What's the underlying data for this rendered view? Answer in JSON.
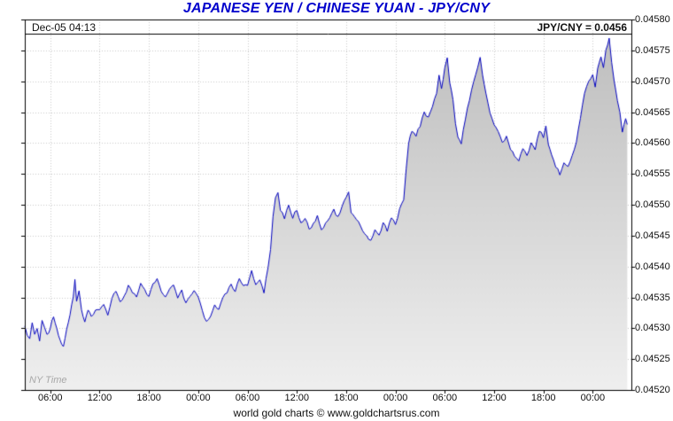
{
  "header": {
    "title": "JAPANESE YEN / CHINESE YUAN - JPY/CNY",
    "datetime": "Dec-05  04:13",
    "quote": "JPY/CNY = 0.0456"
  },
  "footer": {
    "credit": "world gold charts © www.goldchartsrus.com"
  },
  "chart_data": {
    "type": "line",
    "title": "JAPANESE YEN / CHINESE YUAN - JPY/CNY",
    "timezone_label": "NY Time",
    "xlabel": "",
    "ylabel": "",
    "ylim": [
      0.0452,
      0.0458
    ],
    "ytick_step": 5e-05,
    "ytick_labels": [
      "0.04520",
      "0.04525",
      "0.04530",
      "0.04535",
      "0.04540",
      "0.04545",
      "0.04550",
      "0.04555",
      "0.04560",
      "0.04565",
      "0.04570",
      "0.04575",
      "0.04580"
    ],
    "xtick_labels": [
      "06:00",
      "12:00",
      "18:00",
      "00:00",
      "06:00",
      "12:00",
      "18:00",
      "00:00",
      "06:00",
      "12:00",
      "18:00",
      "00:00"
    ],
    "xtick_hours": [
      6,
      12,
      18,
      24,
      30,
      36,
      42,
      48,
      54,
      60,
      66,
      72
    ],
    "x_range_hours": [
      2.9,
      76.7
    ],
    "grid": true,
    "legend": "none",
    "line_color": "#0000bd",
    "grid_color": "#c9c9c9",
    "border_color": "#000000",
    "fill_top_color": "#bcbcbc",
    "fill_bottom_color": "#efefef",
    "title_color": "#0000cc",
    "points": [
      [
        2.9,
        0.0453
      ],
      [
        3.2,
        0.04529
      ],
      [
        3.5,
        0.04528
      ],
      [
        3.8,
        0.04531
      ],
      [
        4.1,
        0.04529
      ],
      [
        4.4,
        0.0453
      ],
      [
        4.7,
        0.04528
      ],
      [
        5.0,
        0.04531
      ],
      [
        5.3,
        0.0453
      ],
      [
        5.6,
        0.04529
      ],
      [
        6.0,
        0.0453
      ],
      [
        6.4,
        0.04532
      ],
      [
        6.8,
        0.0453
      ],
      [
        7.2,
        0.04528
      ],
      [
        7.6,
        0.04527
      ],
      [
        8.0,
        0.0453
      ],
      [
        8.4,
        0.04532
      ],
      [
        8.8,
        0.04535
      ],
      [
        9.0,
        0.04538
      ],
      [
        9.2,
        0.04534
      ],
      [
        9.5,
        0.04536
      ],
      [
        9.8,
        0.04533
      ],
      [
        10.2,
        0.04531
      ],
      [
        10.6,
        0.04533
      ],
      [
        11.0,
        0.04532
      ],
      [
        11.5,
        0.04533
      ],
      [
        12.0,
        0.04533
      ],
      [
        12.5,
        0.04534
      ],
      [
        13.0,
        0.04532
      ],
      [
        13.5,
        0.04535
      ],
      [
        14.0,
        0.04536
      ],
      [
        14.5,
        0.04534
      ],
      [
        15.0,
        0.04535
      ],
      [
        15.5,
        0.04537
      ],
      [
        16.0,
        0.04536
      ],
      [
        16.5,
        0.04535
      ],
      [
        17.0,
        0.04537
      ],
      [
        17.5,
        0.04536
      ],
      [
        18.0,
        0.04535
      ],
      [
        18.5,
        0.04537
      ],
      [
        19.0,
        0.04538
      ],
      [
        19.5,
        0.04536
      ],
      [
        20.0,
        0.04535
      ],
      [
        20.5,
        0.04536
      ],
      [
        21.0,
        0.04537
      ],
      [
        21.5,
        0.04535
      ],
      [
        22.0,
        0.04536
      ],
      [
        22.5,
        0.04534
      ],
      [
        23.0,
        0.04535
      ],
      [
        23.5,
        0.04536
      ],
      [
        24.0,
        0.04535
      ],
      [
        24.5,
        0.04533
      ],
      [
        25.0,
        0.04531
      ],
      [
        25.5,
        0.04532
      ],
      [
        26.0,
        0.04534
      ],
      [
        26.5,
        0.04533
      ],
      [
        27.0,
        0.04535
      ],
      [
        27.5,
        0.04536
      ],
      [
        28.0,
        0.04537
      ],
      [
        28.5,
        0.04536
      ],
      [
        29.0,
        0.04538
      ],
      [
        29.5,
        0.04537
      ],
      [
        30.0,
        0.04537
      ],
      [
        30.5,
        0.04539
      ],
      [
        31.0,
        0.04537
      ],
      [
        31.5,
        0.04538
      ],
      [
        32.0,
        0.04536
      ],
      [
        32.5,
        0.0454
      ],
      [
        32.8,
        0.04543
      ],
      [
        33.1,
        0.04548
      ],
      [
        33.4,
        0.04551
      ],
      [
        33.7,
        0.04552
      ],
      [
        34.0,
        0.04549
      ],
      [
        34.5,
        0.04548
      ],
      [
        35.0,
        0.0455
      ],
      [
        35.5,
        0.04548
      ],
      [
        36.0,
        0.04549
      ],
      [
        36.5,
        0.04547
      ],
      [
        37.0,
        0.04548
      ],
      [
        37.5,
        0.04546
      ],
      [
        38.0,
        0.04547
      ],
      [
        38.5,
        0.04548
      ],
      [
        39.0,
        0.04546
      ],
      [
        39.5,
        0.04547
      ],
      [
        40.0,
        0.04548
      ],
      [
        40.5,
        0.04549
      ],
      [
        41.0,
        0.04548
      ],
      [
        41.5,
        0.0455
      ],
      [
        42.0,
        0.04551
      ],
      [
        42.3,
        0.04552
      ],
      [
        42.6,
        0.04549
      ],
      [
        43.0,
        0.04548
      ],
      [
        43.5,
        0.04547
      ],
      [
        44.0,
        0.04546
      ],
      [
        44.5,
        0.04545
      ],
      [
        45.0,
        0.04544
      ],
      [
        45.5,
        0.04546
      ],
      [
        46.0,
        0.04545
      ],
      [
        46.5,
        0.04547
      ],
      [
        47.0,
        0.04546
      ],
      [
        47.5,
        0.04548
      ],
      [
        48.0,
        0.04547
      ],
      [
        48.5,
        0.04549
      ],
      [
        49.0,
        0.04551
      ],
      [
        49.3,
        0.04556
      ],
      [
        49.6,
        0.0456
      ],
      [
        50.0,
        0.04562
      ],
      [
        50.5,
        0.04561
      ],
      [
        51.0,
        0.04563
      ],
      [
        51.5,
        0.04565
      ],
      [
        52.0,
        0.04564
      ],
      [
        52.5,
        0.04566
      ],
      [
        53.0,
        0.04568
      ],
      [
        53.3,
        0.04571
      ],
      [
        53.6,
        0.04569
      ],
      [
        54.0,
        0.04572
      ],
      [
        54.3,
        0.04574
      ],
      [
        54.6,
        0.0457
      ],
      [
        55.0,
        0.04567
      ],
      [
        55.3,
        0.04563
      ],
      [
        55.6,
        0.04561
      ],
      [
        56.0,
        0.0456
      ],
      [
        56.5,
        0.04564
      ],
      [
        57.0,
        0.04567
      ],
      [
        57.5,
        0.0457
      ],
      [
        58.0,
        0.04572
      ],
      [
        58.3,
        0.04574
      ],
      [
        58.6,
        0.04571
      ],
      [
        59.0,
        0.04568
      ],
      [
        59.5,
        0.04565
      ],
      [
        60.0,
        0.04563
      ],
      [
        60.5,
        0.04562
      ],
      [
        61.0,
        0.0456
      ],
      [
        61.5,
        0.04561
      ],
      [
        62.0,
        0.04559
      ],
      [
        62.5,
        0.04558
      ],
      [
        63.0,
        0.04557
      ],
      [
        63.5,
        0.04559
      ],
      [
        64.0,
        0.04558
      ],
      [
        64.5,
        0.0456
      ],
      [
        65.0,
        0.04559
      ],
      [
        65.5,
        0.04562
      ],
      [
        66.0,
        0.04561
      ],
      [
        66.3,
        0.04563
      ],
      [
        66.6,
        0.0456
      ],
      [
        67.0,
        0.04558
      ],
      [
        67.5,
        0.04556
      ],
      [
        68.0,
        0.04555
      ],
      [
        68.5,
        0.04557
      ],
      [
        69.0,
        0.04556
      ],
      [
        69.5,
        0.04558
      ],
      [
        70.0,
        0.0456
      ],
      [
        70.5,
        0.04564
      ],
      [
        71.0,
        0.04568
      ],
      [
        71.5,
        0.0457
      ],
      [
        72.0,
        0.04571
      ],
      [
        72.3,
        0.04569
      ],
      [
        72.6,
        0.04572
      ],
      [
        73.0,
        0.04574
      ],
      [
        73.3,
        0.04572
      ],
      [
        73.6,
        0.04575
      ],
      [
        74.0,
        0.04577
      ],
      [
        74.3,
        0.04573
      ],
      [
        74.6,
        0.0457
      ],
      [
        75.0,
        0.04567
      ],
      [
        75.3,
        0.04565
      ],
      [
        75.6,
        0.04562
      ],
      [
        76.0,
        0.04564
      ],
      [
        76.2,
        0.04563
      ]
    ]
  }
}
